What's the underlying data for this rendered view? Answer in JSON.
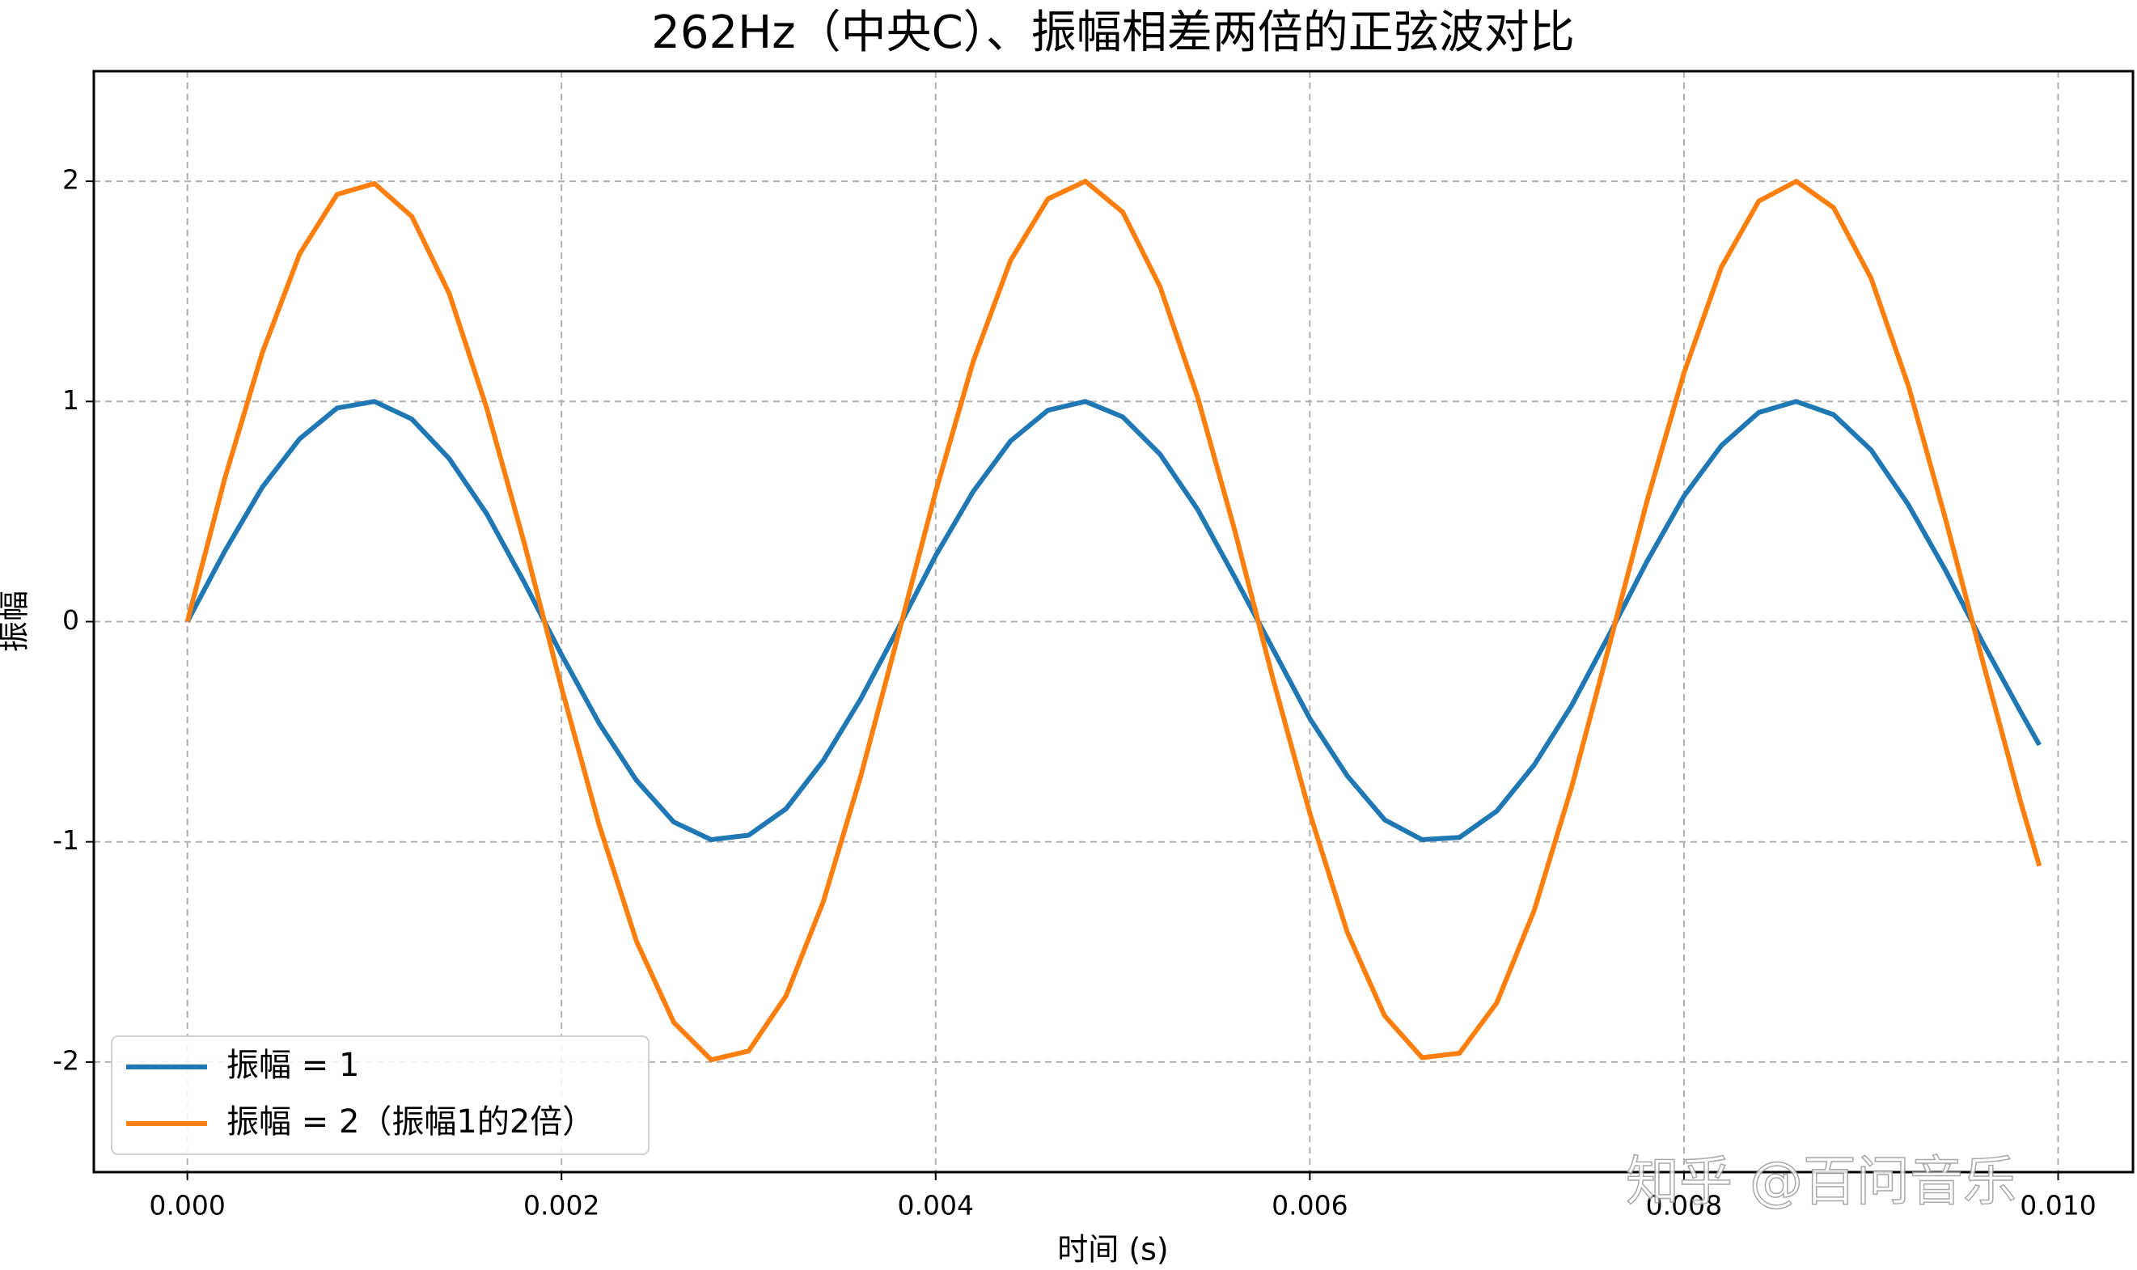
{
  "chart_data": {
    "type": "line",
    "title": "262Hz（中央C）、振幅相差两倍的正弦波对比",
    "xlabel": "时间 (s)",
    "ylabel": "振幅",
    "watermark": "知乎 @百问音乐",
    "x": [
      0,
      0.0002,
      0.0004,
      0.0006,
      0.0008,
      0.001,
      0.0012,
      0.0014,
      0.0016,
      0.0018,
      0.002,
      0.0022,
      0.0024,
      0.0026,
      0.0028,
      0.003,
      0.0032,
      0.0034,
      0.0036,
      0.0038,
      0.004,
      0.0042,
      0.0044,
      0.0046,
      0.0048,
      0.005,
      0.0052,
      0.0054,
      0.0056,
      0.0058,
      0.006,
      0.0062,
      0.0064,
      0.0066,
      0.0068,
      0.007,
      0.0072,
      0.0074,
      0.0076,
      0.0078,
      0.008,
      0.0082,
      0.0084,
      0.0086,
      0.0088,
      0.009,
      0.0092,
      0.0094,
      0.0096,
      0.0098,
      0.0099
    ],
    "series": [
      {
        "name": "振幅 = 1",
        "color": "#1f77b4",
        "values": [
          0,
          0.32,
          0.61,
          0.83,
          0.97,
          1.0,
          0.92,
          0.74,
          0.49,
          0.18,
          -0.15,
          -0.46,
          -0.72,
          -0.91,
          -0.99,
          -0.97,
          -0.85,
          -0.63,
          -0.35,
          -0.03,
          0.3,
          0.59,
          0.82,
          0.96,
          1.0,
          0.93,
          0.76,
          0.51,
          0.2,
          -0.12,
          -0.44,
          -0.7,
          -0.9,
          -0.99,
          -0.98,
          -0.86,
          -0.65,
          -0.38,
          -0.06,
          0.27,
          0.57,
          0.8,
          0.95,
          1.0,
          0.94,
          0.78,
          0.53,
          0.23,
          -0.1,
          -0.41,
          -0.56
        ]
      },
      {
        "name": "振幅 = 2（振幅1的2倍）",
        "color": "#ff7f0e",
        "values": [
          0,
          0.65,
          1.22,
          1.67,
          1.94,
          1.99,
          1.84,
          1.49,
          0.97,
          0.36,
          -0.3,
          -0.92,
          -1.45,
          -1.82,
          -1.99,
          -1.95,
          -1.7,
          -1.27,
          -0.7,
          -0.06,
          0.59,
          1.18,
          1.64,
          1.92,
          2.0,
          1.86,
          1.52,
          1.02,
          0.41,
          -0.25,
          -0.87,
          -1.41,
          -1.79,
          -1.98,
          -1.96,
          -1.73,
          -1.31,
          -0.75,
          -0.11,
          0.54,
          1.13,
          1.61,
          1.91,
          2.0,
          1.88,
          1.56,
          1.07,
          0.46,
          -0.19,
          -0.82,
          -1.11
        ]
      }
    ],
    "xlim": [
      -0.0005,
      0.0104
    ],
    "ylim": [
      -2.5,
      2.5
    ],
    "xticks": [
      {
        "value": 0,
        "label": "0.000"
      },
      {
        "value": 0.002,
        "label": "0.002"
      },
      {
        "value": 0.004,
        "label": "0.004"
      },
      {
        "value": 0.006,
        "label": "0.006"
      },
      {
        "value": 0.008,
        "label": "0.008"
      },
      {
        "value": 0.01,
        "label": "0.010"
      }
    ],
    "yticks": [
      -2,
      -1,
      0,
      1,
      2
    ],
    "grid": true,
    "legend": "lower left"
  }
}
